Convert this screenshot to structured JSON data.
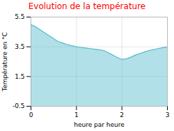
{
  "chart_data": {
    "type": "area",
    "title": "Evolution de la température",
    "xlabel": "heure par heure",
    "ylabel": "Température en °C",
    "x": [
      0,
      0.1,
      0.2,
      0.3,
      0.4,
      0.5,
      0.6,
      0.7,
      0.8,
      0.9,
      1.0,
      1.1,
      1.2,
      1.3,
      1.4,
      1.5,
      1.6,
      1.7,
      1.8,
      1.9,
      2.0,
      2.1,
      2.2,
      2.3,
      2.4,
      2.5,
      2.6,
      2.7,
      2.8,
      2.9,
      3.0
    ],
    "values": [
      5.0,
      4.85,
      4.65,
      4.45,
      4.25,
      4.05,
      3.85,
      3.75,
      3.65,
      3.57,
      3.5,
      3.46,
      3.42,
      3.38,
      3.34,
      3.3,
      3.25,
      3.1,
      2.95,
      2.78,
      2.65,
      2.7,
      2.8,
      2.95,
      3.05,
      3.15,
      3.25,
      3.32,
      3.38,
      3.44,
      3.5
    ],
    "color": "#55bbcc",
    "xlim": [
      0,
      3
    ],
    "ylim": [
      -0.5,
      5.5
    ],
    "xticks": [
      0,
      1,
      2,
      3
    ],
    "yticks": [
      -0.5,
      1.5,
      3.5,
      5.5
    ],
    "grid": true
  }
}
